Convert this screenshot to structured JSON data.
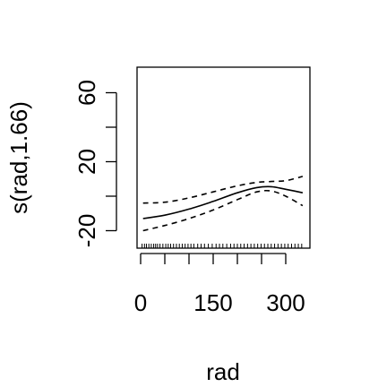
{
  "chart_data": {
    "type": "line",
    "xlabel": "rad",
    "ylabel": "s(rad,1.66)",
    "xlim": [
      0,
      340
    ],
    "ylim": [
      -30,
      75
    ],
    "x_ticks": [
      0,
      50,
      100,
      150,
      200,
      250,
      300
    ],
    "x_tick_labels": [
      "0",
      "",
      "",
      "150",
      "",
      "",
      "300"
    ],
    "y_ticks": [
      -20,
      0,
      20,
      40,
      60
    ],
    "y_tick_labels": [
      "-20",
      "",
      "20",
      "",
      "60"
    ],
    "grid": false,
    "series": [
      {
        "role": "fit",
        "style": "solid",
        "x": [
          5,
          50,
          100,
          150,
          200,
          240,
          270,
          300,
          335
        ],
        "y": [
          -13,
          -11,
          -7.5,
          -3,
          2,
          5,
          5.5,
          4,
          2
        ]
      },
      {
        "role": "upper",
        "style": "dashed",
        "x": [
          5,
          50,
          100,
          150,
          200,
          240,
          270,
          300,
          335
        ],
        "y": [
          -4,
          -3.5,
          -1,
          2.5,
          6,
          8,
          8.5,
          9,
          11.5
        ]
      },
      {
        "role": "lower",
        "style": "dashed",
        "x": [
          5,
          50,
          100,
          150,
          200,
          240,
          270,
          300,
          335
        ],
        "y": [
          -20,
          -17,
          -13,
          -8,
          -2,
          2.5,
          3,
          0,
          -5.5
        ]
      }
    ],
    "rug": [
      3,
      8,
      12,
      17,
      22,
      27,
      31,
      35,
      40,
      46,
      52,
      57,
      62,
      68,
      74,
      80,
      86,
      92,
      98,
      104,
      110,
      118,
      125,
      132,
      140,
      148,
      156,
      163,
      170,
      178,
      186,
      193,
      200,
      207,
      214,
      221,
      228,
      235,
      242,
      249,
      256,
      263,
      270,
      277,
      284,
      291,
      298,
      305,
      312,
      319,
      326,
      333
    ]
  }
}
